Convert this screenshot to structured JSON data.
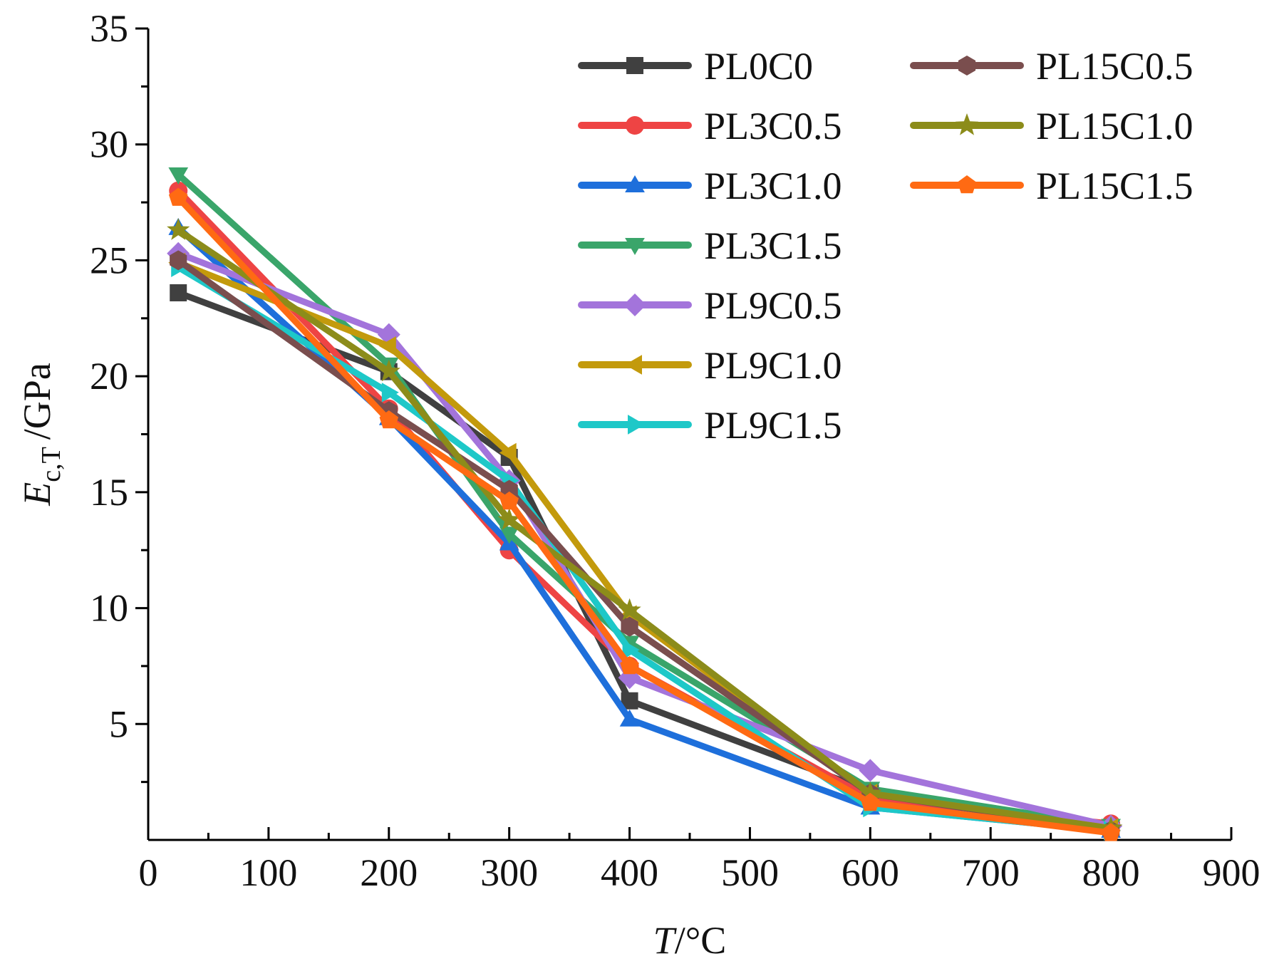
{
  "chart_data": {
    "type": "line",
    "title": "",
    "xlabel": {
      "var": "T",
      "unit": "/°C"
    },
    "ylabel": {
      "var": "E",
      "sub": "c,T",
      "unit": "/GPa"
    },
    "xlim": [
      0,
      900
    ],
    "ylim": [
      0,
      35
    ],
    "xticks": [
      0,
      100,
      200,
      300,
      400,
      500,
      600,
      700,
      800,
      900
    ],
    "xtick_labels": [
      "0",
      "100",
      "200",
      "300",
      "400",
      "500",
      "600",
      "700",
      "800",
      "900"
    ],
    "yticks": [
      5,
      10,
      15,
      20,
      25,
      30,
      35
    ],
    "ytick_labels": [
      "5",
      "10",
      "15",
      "20",
      "25",
      "30",
      "35"
    ],
    "x": [
      25,
      200,
      300,
      400,
      600,
      800
    ],
    "grid": false,
    "legend_position": "top-right, two columns",
    "series": [
      {
        "name": "PL0C0",
        "color": "#404040",
        "marker": "square",
        "values": [
          23.6,
          20.2,
          16.5,
          6.0,
          2.1,
          0.5
        ]
      },
      {
        "name": "PL3C0.5",
        "color": "#EE4444",
        "marker": "circle",
        "values": [
          28.0,
          18.6,
          12.5,
          7.5,
          1.8,
          0.7
        ]
      },
      {
        "name": "PL3C1.0",
        "color": "#1E6FDB",
        "marker": "triangle-up",
        "values": [
          26.4,
          18.2,
          12.8,
          5.2,
          1.4,
          0.4
        ]
      },
      {
        "name": "PL3C1.5",
        "color": "#3AA56A",
        "marker": "triangle-down",
        "values": [
          28.7,
          20.5,
          13.2,
          8.5,
          2.2,
          0.6
        ]
      },
      {
        "name": "PL9C0.5",
        "color": "#A374DB",
        "marker": "diamond",
        "values": [
          25.3,
          21.8,
          15.5,
          7.0,
          3.0,
          0.6
        ]
      },
      {
        "name": "PL9C1.0",
        "color": "#C39A0C",
        "marker": "triangle-left",
        "values": [
          24.9,
          21.3,
          16.7,
          9.7,
          2.0,
          0.5
        ]
      },
      {
        "name": "PL9C1.5",
        "color": "#1EC8C8",
        "marker": "triangle-right",
        "values": [
          24.7,
          19.3,
          15.5,
          8.2,
          1.4,
          0.4
        ]
      },
      {
        "name": "PL15C0.5",
        "color": "#7A4E4E",
        "marker": "hexagon",
        "values": [
          25.0,
          18.5,
          15.1,
          9.2,
          2.0,
          0.4
        ]
      },
      {
        "name": "PL15C1.0",
        "color": "#8C8C1A",
        "marker": "star",
        "values": [
          26.3,
          20.2,
          13.8,
          9.9,
          2.0,
          0.5
        ]
      },
      {
        "name": "PL15C1.5",
        "color": "#FF6A13",
        "marker": "pentagon",
        "values": [
          27.7,
          18.1,
          14.6,
          7.5,
          1.6,
          0.3
        ]
      }
    ]
  }
}
